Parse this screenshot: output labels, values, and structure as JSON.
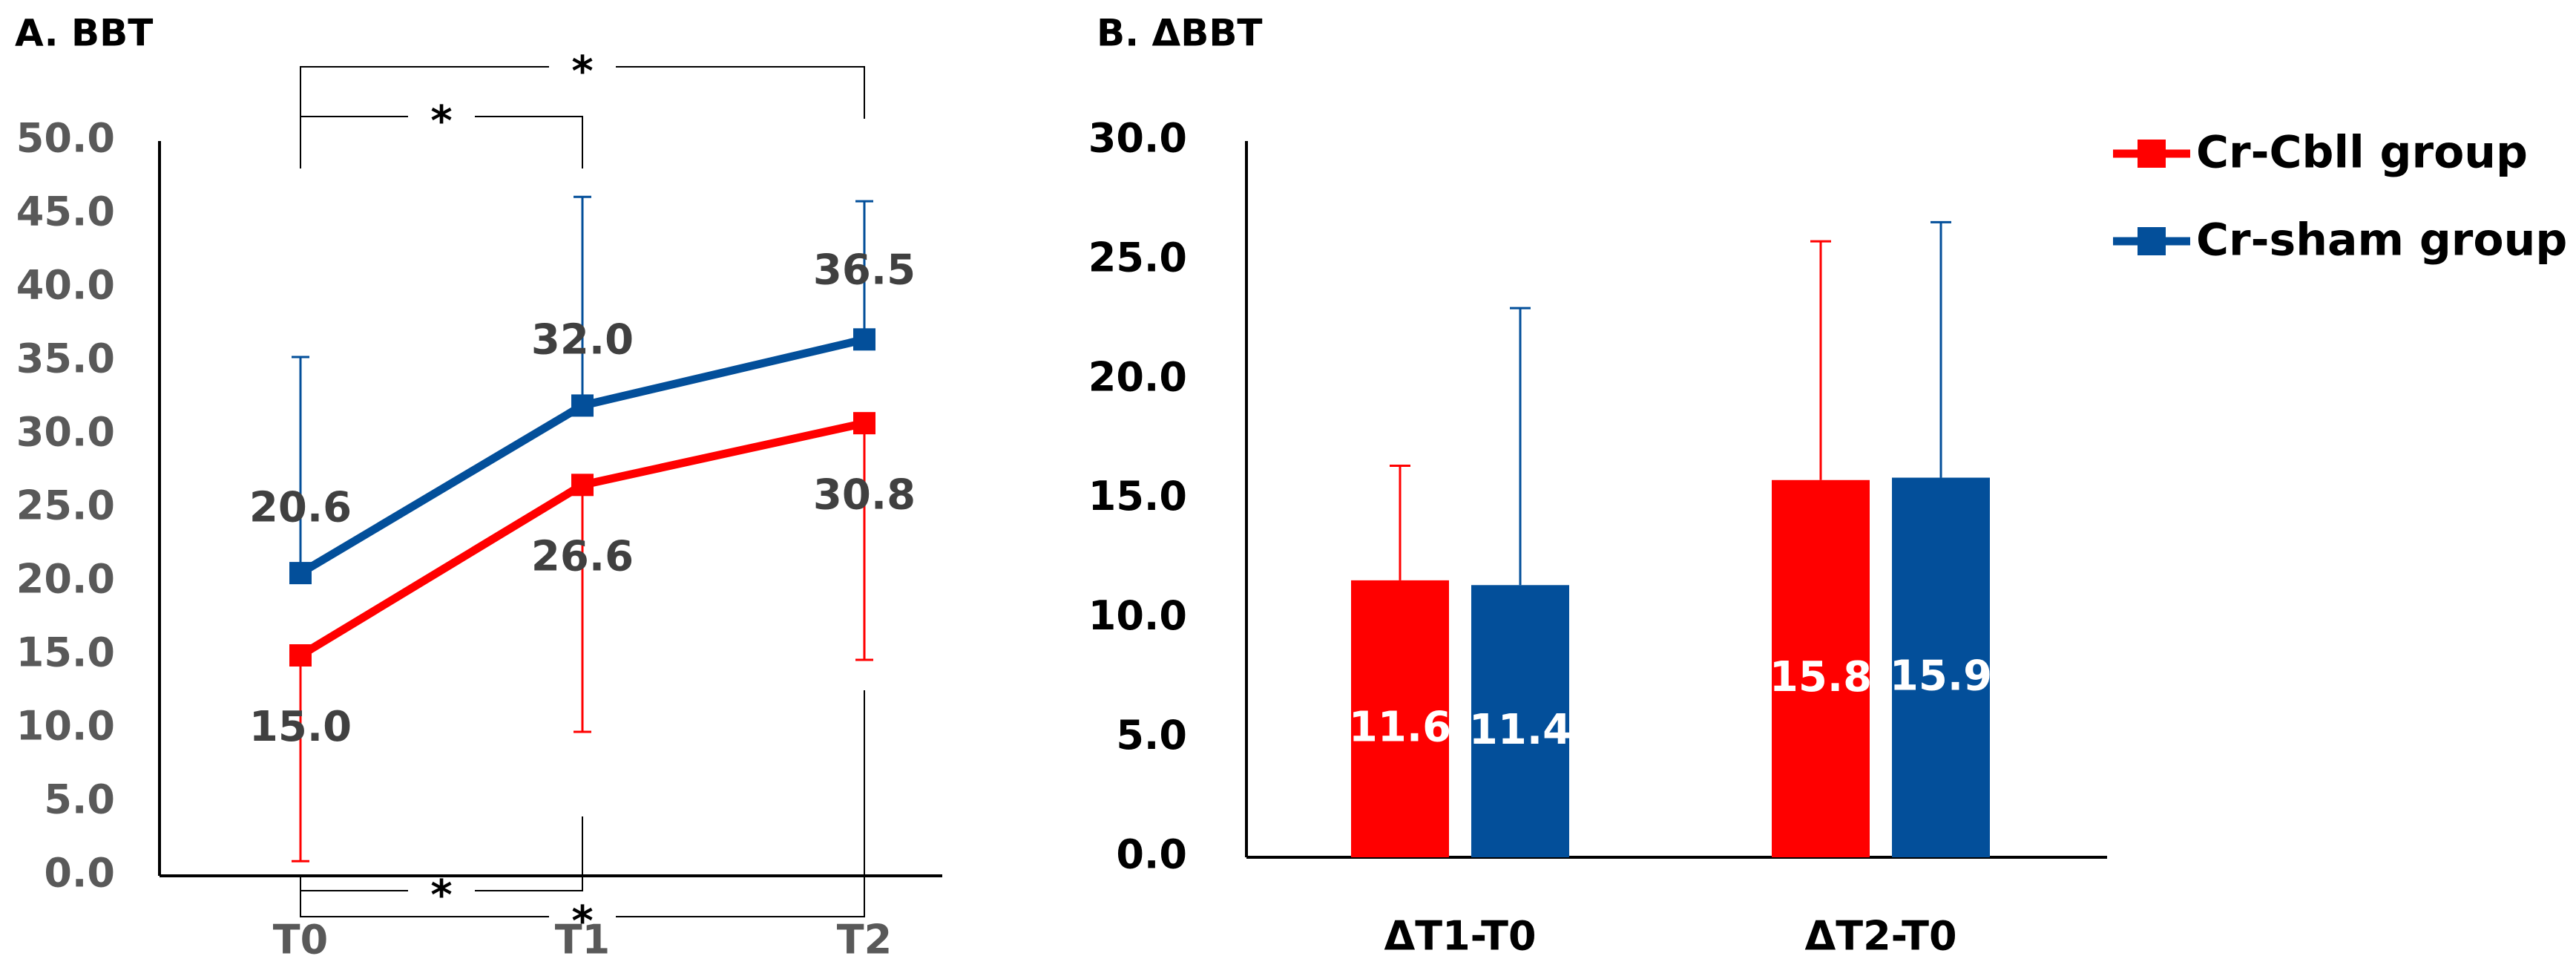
{
  "chart_data": [
    {
      "panel": "A",
      "type": "line",
      "title": "A. BBT",
      "categories": [
        "T0",
        "T1",
        "T2"
      ],
      "ylim": [
        0,
        50
      ],
      "ytick_step": 5,
      "yticks": [
        "0.0",
        "5.0",
        "10.0",
        "15.0",
        "20.0",
        "25.0",
        "30.0",
        "35.0",
        "40.0",
        "45.0",
        "50.0"
      ],
      "series": [
        {
          "name": "Cr-Cbll group",
          "color": "#ff0000",
          "values": [
            15.0,
            26.6,
            30.8
          ],
          "labels": [
            "15.0",
            "26.6",
            "30.8"
          ],
          "error": [
            14.0,
            16.8,
            16.1
          ],
          "error_dir": "down"
        },
        {
          "name": "Cr-sham group",
          "color": "#034f9a",
          "values": [
            20.6,
            32.0,
            36.5
          ],
          "labels": [
            "20.6",
            "32.0",
            "36.5"
          ],
          "error": [
            14.7,
            14.2,
            9.4
          ],
          "error_dir": "up"
        }
      ],
      "significance": [
        {
          "from": "T0",
          "to": "T2",
          "side": "top",
          "symbol": "*"
        },
        {
          "from": "T0",
          "to": "T1",
          "side": "top",
          "symbol": "*"
        },
        {
          "from": "T0",
          "to": "T1",
          "side": "bottom",
          "symbol": "*"
        },
        {
          "from": "T0",
          "to": "T2",
          "side": "bottom",
          "symbol": "*"
        }
      ]
    },
    {
      "panel": "B",
      "type": "bar",
      "title": "B. ΔBBT",
      "categories": [
        "ΔT1-T0",
        "ΔT2-T0"
      ],
      "ylim": [
        0,
        30
      ],
      "ytick_step": 5,
      "yticks": [
        "0.0",
        "5.0",
        "10.0",
        "15.0",
        "20.0",
        "25.0",
        "30.0"
      ],
      "series": [
        {
          "name": "Cr-Cbll group",
          "color": "#ff0000",
          "values": [
            11.6,
            15.8
          ],
          "labels": [
            "11.6",
            "15.8"
          ],
          "error": [
            4.8,
            10.0
          ]
        },
        {
          "name": "Cr-sham group",
          "color": "#034f9a",
          "values": [
            11.4,
            15.9
          ],
          "labels": [
            "11.4",
            "15.9"
          ],
          "error": [
            11.6,
            10.7
          ]
        }
      ],
      "legend": {
        "position": "top-right",
        "entries": [
          "Cr-Cbll group",
          "Cr-sham group"
        ]
      }
    }
  ]
}
